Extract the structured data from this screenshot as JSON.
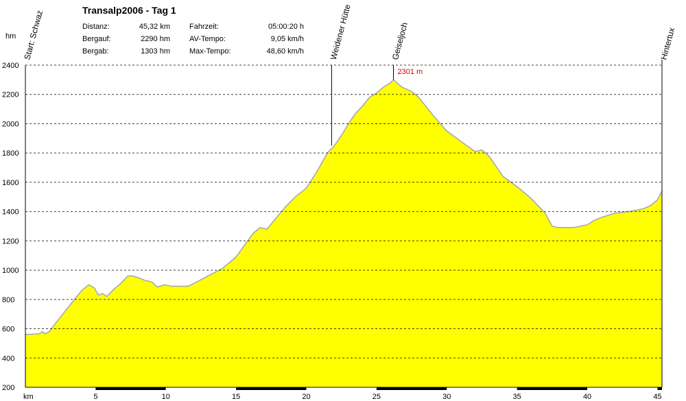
{
  "header": {
    "title": "Transalp2006 - Tag 1",
    "stats_left": [
      {
        "label": "Distanz:",
        "value": "45,32 km"
      },
      {
        "label": "Bergauf:",
        "value": "2290 hm"
      },
      {
        "label": "Bergab:",
        "value": "1303 hm"
      }
    ],
    "stats_right": [
      {
        "label": "Fahrzeit:",
        "value": "05:00:20 h"
      },
      {
        "label": "AV-Tempo:",
        "value": "9,05 km/h"
      },
      {
        "label": "Max-Tempo:",
        "value": "48,60 km/h"
      }
    ]
  },
  "colors": {
    "fill": "#ffff00",
    "profile_line": "#a8a8b0",
    "grid": "#000000",
    "peak_label": "#d40000"
  },
  "chart_data": {
    "type": "area",
    "title": "Transalp2006 - Tag 1",
    "ylabel": "hm",
    "xlabel": "km",
    "xlim": [
      0,
      45.32
    ],
    "ylim": [
      200,
      2400
    ],
    "yticks": [
      200,
      400,
      600,
      800,
      1000,
      1200,
      1400,
      1600,
      1800,
      2000,
      2200,
      2400
    ],
    "xticks": [
      5,
      10,
      15,
      20,
      25,
      30,
      35,
      40,
      45
    ],
    "grid": true,
    "series": [
      {
        "x": [
          0,
          1.0,
          1.2,
          1.4,
          1.7,
          2.0,
          2.5,
          3.0,
          3.5,
          4.0,
          4.5,
          4.9,
          5.2,
          5.5,
          5.8,
          6.3,
          6.8,
          7.3,
          7.6,
          8.0,
          8.5,
          9.0,
          9.4,
          9.9,
          10.4,
          11.0,
          11.6,
          12.2,
          13.0,
          14.0,
          15.0,
          15.6,
          16.2,
          16.7,
          17.2,
          17.8,
          18.5,
          19.2,
          20.0,
          20.8,
          21.5,
          22.0,
          22.5,
          23.0,
          23.5,
          24.0,
          24.5,
          25.0,
          25.5,
          26.0,
          26.2,
          26.8,
          27.5,
          28.0,
          29.0,
          30.0,
          31.0,
          32.0,
          32.5,
          33.0,
          34.0,
          35.0,
          36.0,
          37.0,
          37.5,
          38.0,
          39.0,
          40.0,
          40.5,
          41.0,
          42.0,
          43.0,
          44.0,
          44.5,
          45.0,
          45.32
        ],
        "y": [
          560,
          565,
          580,
          565,
          580,
          620,
          680,
          740,
          800,
          860,
          900,
          880,
          830,
          840,
          820,
          870,
          910,
          960,
          960,
          950,
          930,
          920,
          885,
          900,
          890,
          890,
          890,
          920,
          960,
          1010,
          1090,
          1170,
          1250,
          1290,
          1280,
          1350,
          1430,
          1500,
          1560,
          1680,
          1800,
          1850,
          1920,
          2000,
          2070,
          2120,
          2180,
          2210,
          2250,
          2280,
          2301,
          2250,
          2220,
          2180,
          2060,
          1950,
          1880,
          1810,
          1820,
          1780,
          1640,
          1570,
          1490,
          1390,
          1300,
          1290,
          1290,
          1310,
          1340,
          1360,
          1390,
          1400,
          1420,
          1440,
          1480,
          1540
        ]
      }
    ],
    "waypoints": [
      {
        "km": 0,
        "name": "Start: Schwaz"
      },
      {
        "km": 21.8,
        "name": "Weidener Hütte"
      },
      {
        "km": 26.2,
        "name": "Geiseljoch"
      },
      {
        "km": 45.32,
        "name": "Hintertux"
      }
    ],
    "peak": {
      "km": 26.2,
      "value": 2301,
      "label": "2301 m"
    }
  }
}
